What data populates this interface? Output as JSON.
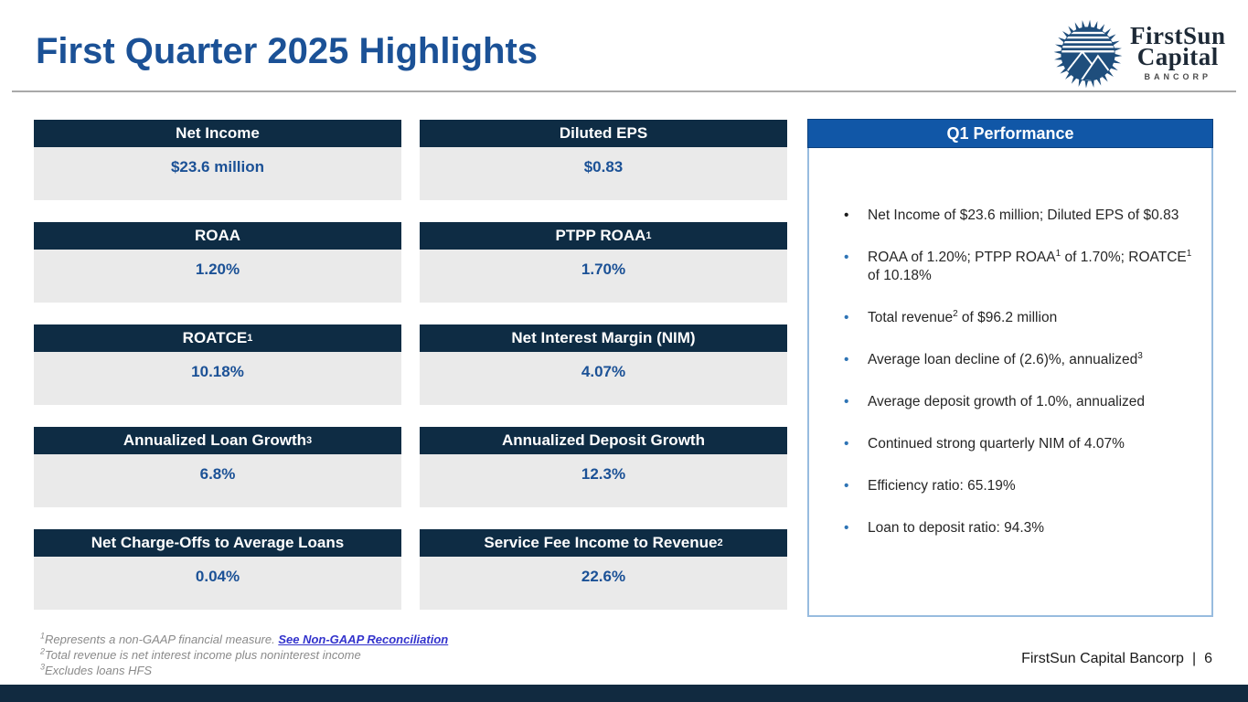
{
  "slide": {
    "title": "First Quarter 2025 Highlights",
    "footer_text": "FirstSun Capital Bancorp",
    "footer_separator": "|",
    "page_number": "6"
  },
  "logo": {
    "line1": "FirstSun",
    "line2": "Capital",
    "line3": "BANCORP"
  },
  "colors": {
    "title_blue": "#1b5196",
    "card_header_navy": "#0e2c44",
    "card_body_gray": "#eaeaea",
    "value_blue": "#1b5196",
    "panel_header_blue": "#1157a7",
    "panel_border_blue": "#98bcdf",
    "bullet_blue": "#2e74b5",
    "link_blue": "#3333cc",
    "bottom_bar_navy": "#112a40",
    "logo_navy": "#1f4e7c"
  },
  "metrics": [
    {
      "label": "Net Income",
      "sup": "",
      "value": "$23.6 million"
    },
    {
      "label": "Diluted EPS",
      "sup": "",
      "value": "$0.83"
    },
    {
      "label": "ROAA",
      "sup": "",
      "value": "1.20%"
    },
    {
      "label": "PTPP ROAA",
      "sup": "1",
      "value": "1.70%"
    },
    {
      "label": "ROATCE",
      "sup": "1",
      "value": "10.18%"
    },
    {
      "label": "Net Interest Margin (NIM)",
      "sup": "",
      "value": "4.07%"
    },
    {
      "label": "Annualized Loan Growth",
      "sup": "3",
      "value": "6.8%"
    },
    {
      "label": "Annualized Deposit Growth",
      "sup": "",
      "value": "12.3%"
    },
    {
      "label": "Net Charge-Offs to Average Loans",
      "sup": "",
      "value": "0.04%"
    },
    {
      "label": "Service Fee Income to Revenue",
      "sup": "2",
      "value": "22.6%"
    }
  ],
  "performance": {
    "title": "Q1 Performance",
    "bullets": [
      {
        "segments": [
          {
            "t": "Net Income of $23.6 million; Diluted EPS of $0.83"
          }
        ]
      },
      {
        "segments": [
          {
            "t": "ROAA of 1.20%; PTPP ROAA"
          },
          {
            "t": "1",
            "sup": true
          },
          {
            "t": " of 1.70%; ROATCE"
          },
          {
            "t": "1",
            "sup": true
          },
          {
            "t": " of 10.18%"
          }
        ]
      },
      {
        "segments": [
          {
            "t": "Total revenue"
          },
          {
            "t": "2",
            "sup": true
          },
          {
            "t": " of $96.2 million"
          }
        ]
      },
      {
        "segments": [
          {
            "t": "Average loan decline of (2.6)%, annualized"
          },
          {
            "t": "3",
            "sup": true
          }
        ]
      },
      {
        "segments": [
          {
            "t": "Average deposit growth of 1.0%, annualized"
          }
        ]
      },
      {
        "segments": [
          {
            "t": "Continued strong quarterly NIM of 4.07%"
          }
        ]
      },
      {
        "segments": [
          {
            "t": "Efficiency ratio: 65.19%"
          }
        ]
      },
      {
        "segments": [
          {
            "t": "Loan to deposit ratio: 94.3%"
          }
        ]
      }
    ]
  },
  "footnotes": [
    {
      "sup": "1",
      "text": "Represents a non-GAAP financial measure. ",
      "link": "See Non-GAAP Reconciliation"
    },
    {
      "sup": "2",
      "text": "Total revenue is net interest income plus noninterest income",
      "link": ""
    },
    {
      "sup": "3",
      "text": "Excludes loans HFS",
      "link": ""
    }
  ]
}
